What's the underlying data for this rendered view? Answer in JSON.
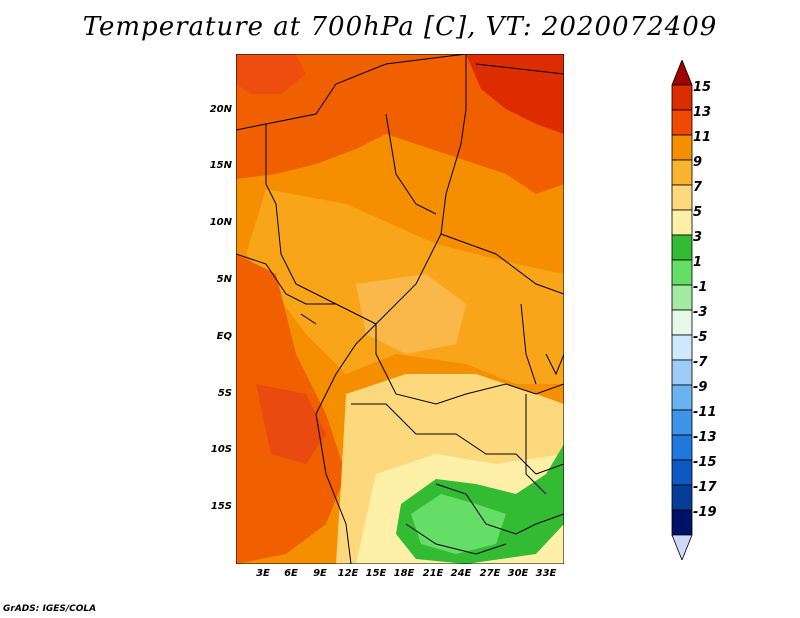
{
  "title": "Temperature at 700hPa [C], VT: 2020072409",
  "lat_labels": [
    "20N",
    "15N",
    "10N",
    "5N",
    "EQ",
    "5S",
    "10S",
    "15S"
  ],
  "lon_labels": [
    "3E",
    "6E",
    "9E",
    "12E",
    "15E",
    "18E",
    "21E",
    "24E",
    "27E",
    "30E",
    "33E"
  ],
  "colorbar": {
    "labels": [
      "15",
      "13",
      "11",
      "9",
      "7",
      "5",
      "3",
      "1",
      "-1",
      "-3",
      "-5",
      "-7",
      "-9",
      "-11",
      "-13",
      "-15",
      "-17",
      "-19"
    ],
    "colors": [
      "#a00000",
      "#dd2c00",
      "#f04a00",
      "#f58f00",
      "#f9b42f",
      "#fdd87c",
      "#fff0a8",
      "#33bb33",
      "#66dd66",
      "#a3eaa3",
      "#e6f8e6",
      "#cfe8fb",
      "#9dcdf6",
      "#6bb3f0",
      "#3e94e6",
      "#2078dc",
      "#0e58c4",
      "#073d9a",
      "#001267",
      "#d0d8f8"
    ]
  },
  "footer": "GrADS: IGES/COLA"
}
